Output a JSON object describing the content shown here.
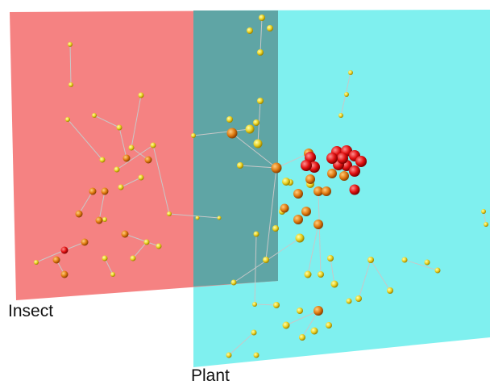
{
  "planes": {
    "insect": "Insect",
    "plant": "Plant"
  }
}
